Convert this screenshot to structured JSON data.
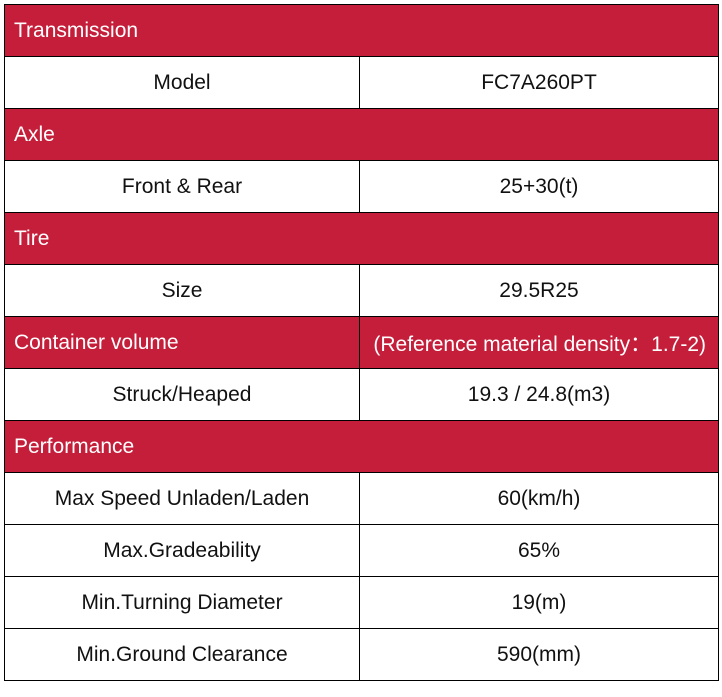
{
  "table": {
    "rows": [
      {
        "type": "section",
        "title": "Transmission",
        "note": ""
      },
      {
        "type": "spec",
        "label": "Model",
        "value": "FC7A260PT"
      },
      {
        "type": "section",
        "title": "Axle",
        "note": ""
      },
      {
        "type": "spec",
        "label": "Front & Rear",
        "value": "25+30(t)"
      },
      {
        "type": "section",
        "title": "Tire",
        "note": ""
      },
      {
        "type": "spec",
        "label": "Size",
        "value": "29.5R25"
      },
      {
        "type": "section",
        "title": "Container volume",
        "note": "(Reference material density：1.7-2)"
      },
      {
        "type": "spec",
        "label": "Struck/Heaped",
        "value": "19.3 / 24.8(m3)"
      },
      {
        "type": "section",
        "title": "Performance",
        "note": ""
      },
      {
        "type": "spec",
        "label": "Max Speed Unladen/Laden",
        "value": "60(km/h)"
      },
      {
        "type": "spec",
        "label": "Max.Gradeability",
        "value": "65%"
      },
      {
        "type": "spec",
        "label": "Min.Turning Diameter",
        "value": "19(m)"
      },
      {
        "type": "spec",
        "label": "Min.Ground Clearance",
        "value": "590(mm)"
      }
    ]
  },
  "colors": {
    "section_bg": "#c41e3a",
    "section_text": "#ffffff",
    "border": "#000000"
  }
}
